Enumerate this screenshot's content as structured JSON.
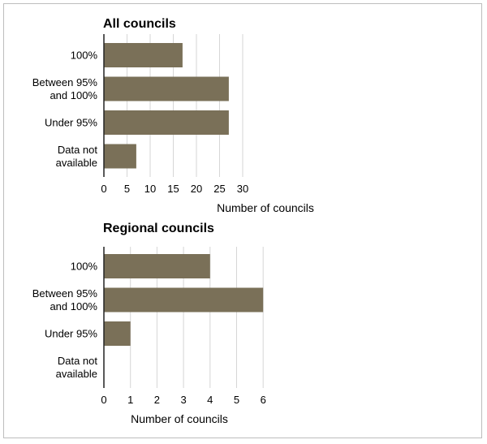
{
  "chart_data": [
    {
      "type": "bar",
      "orientation": "horizontal",
      "title": "All councils",
      "xlabel": "Number of councils",
      "categories": [
        [
          "100%"
        ],
        [
          "Between 95%",
          "and 100%"
        ],
        [
          "Under 95%"
        ],
        [
          "Data not",
          "available"
        ]
      ],
      "values": [
        17,
        27,
        27,
        7
      ],
      "xlim": [
        0,
        30
      ],
      "ticks": [
        0,
        5,
        10,
        15,
        20,
        25,
        30
      ],
      "grid": true,
      "color": "#7a7058"
    },
    {
      "type": "bar",
      "orientation": "horizontal",
      "title": "Regional councils",
      "xlabel": "Number of councils",
      "categories": [
        [
          "100%"
        ],
        [
          "Between 95%",
          "and 100%"
        ],
        [
          "Under 95%"
        ],
        [
          "Data not",
          "available"
        ]
      ],
      "values": [
        4,
        6,
        1,
        0
      ],
      "xlim": [
        0,
        6
      ],
      "ticks": [
        0,
        1,
        2,
        3,
        4,
        5,
        6
      ],
      "grid": true,
      "color": "#7a7058"
    }
  ]
}
